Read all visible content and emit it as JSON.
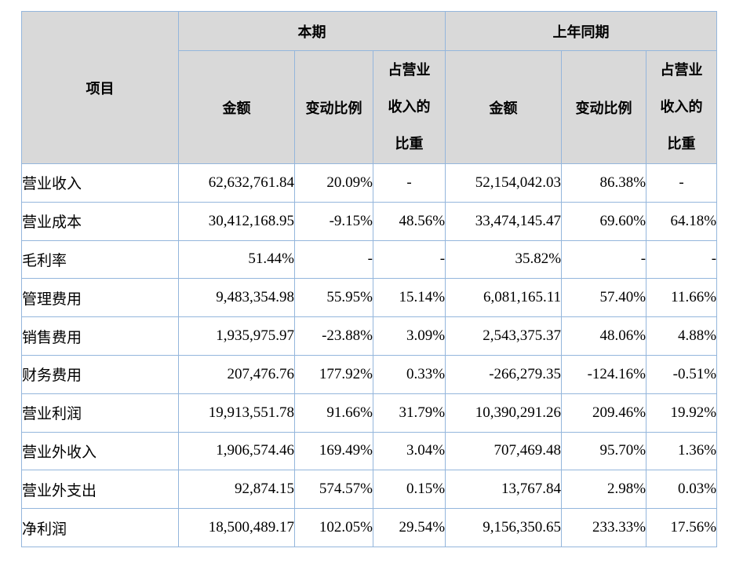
{
  "colors": {
    "border": "#94b6dc",
    "header_background": "#d9d9d9",
    "body_background": "#ffffff",
    "text": "#000000"
  },
  "table": {
    "header": {
      "item": "项目",
      "current_period": "本期",
      "prior_period": "上年同期",
      "amount": "金额",
      "change_ratio": "变动比例",
      "revenue_share": "占营业\n收入的\n比重"
    },
    "rows": [
      {
        "item": "营业收入",
        "cells": [
          "62,632,761.84",
          "20.09%",
          "-",
          "52,154,042.03",
          "86.38%",
          "-"
        ]
      },
      {
        "item": "营业成本",
        "cells": [
          "30,412,168.95",
          "-9.15%",
          "48.56%",
          "33,474,145.47",
          "69.60%",
          "64.18%"
        ]
      },
      {
        "item": "毛利率",
        "cells": [
          "51.44%",
          "-",
          "-",
          "35.82%",
          "-",
          "-"
        ]
      },
      {
        "item": "管理费用",
        "cells": [
          "9,483,354.98",
          "55.95%",
          "15.14%",
          "6,081,165.11",
          "57.40%",
          "11.66%"
        ]
      },
      {
        "item": "销售费用",
        "cells": [
          "1,935,975.97",
          "-23.88%",
          "3.09%",
          "2,543,375.37",
          "48.06%",
          "4.88%"
        ]
      },
      {
        "item": "财务费用",
        "cells": [
          "207,476.76",
          "177.92%",
          "0.33%",
          "-266,279.35",
          "-124.16%",
          "-0.51%"
        ]
      },
      {
        "item": "营业利润",
        "cells": [
          "19,913,551.78",
          "91.66%",
          "31.79%",
          "10,390,291.26",
          "209.46%",
          "19.92%"
        ]
      },
      {
        "item": "营业外收入",
        "cells": [
          "1,906,574.46",
          "169.49%",
          "3.04%",
          "707,469.48",
          "95.70%",
          "1.36%"
        ]
      },
      {
        "item": "营业外支出",
        "cells": [
          "92,874.15",
          "574.57%",
          "0.15%",
          "13,767.84",
          "2.98%",
          "0.03%"
        ]
      },
      {
        "item": "净利润",
        "cells": [
          "18,500,489.17",
          "102.05%",
          "29.54%",
          "9,156,350.65",
          "233.33%",
          "17.56%"
        ]
      }
    ]
  }
}
